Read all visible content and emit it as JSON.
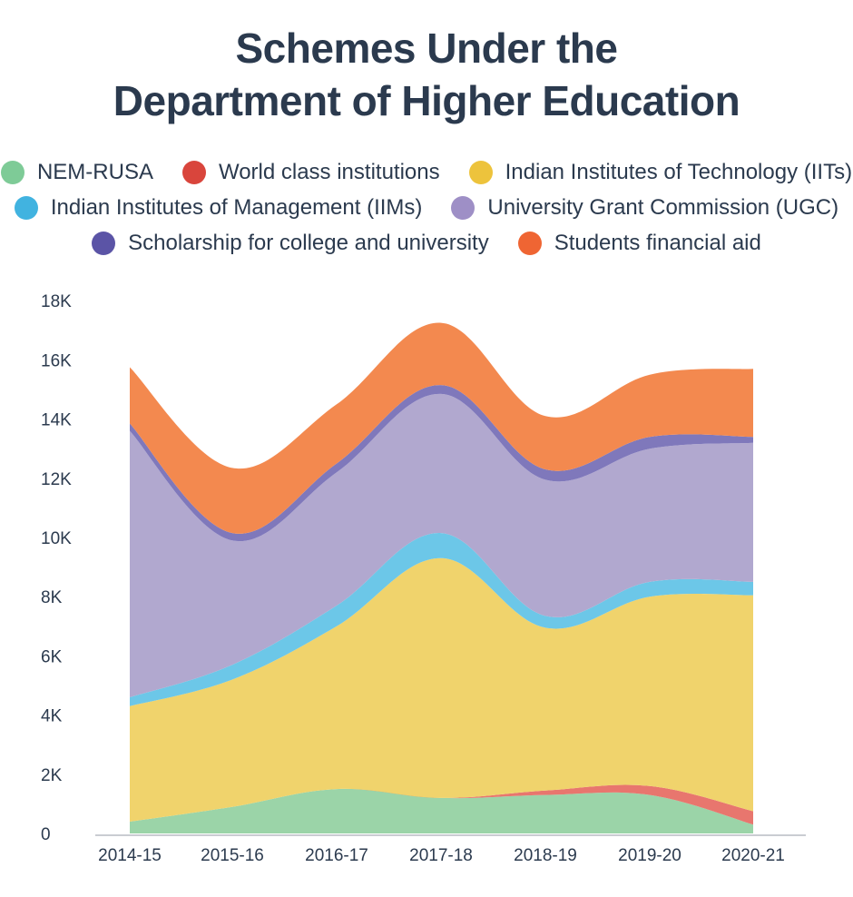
{
  "title_line1": "Schemes Under the",
  "title_line2": "Department of Higher Education",
  "legend": [
    [
      {
        "label": "NEM-RUSA",
        "color": "#7ecb97"
      },
      {
        "label": "World class institutions",
        "color": "#d9453c"
      },
      {
        "label": "Indian Institutes of Technology (IITs)",
        "color": "#edc33c"
      }
    ],
    [
      {
        "label": "Indian Institutes of Management (IIMs)",
        "color": "#41b3e0"
      },
      {
        "label": "University Grant Commission (UGC)",
        "color": "#9e8fc6"
      }
    ],
    [
      {
        "label": "Scholarship for college and university",
        "color": "#5b54a6"
      },
      {
        "label": "Students financial aid",
        "color": "#ef6533"
      }
    ]
  ],
  "chart_data": {
    "type": "area",
    "stacked": true,
    "categories": [
      "2014-15",
      "2015-16",
      "2016-17",
      "2017-18",
      "2018-19",
      "2019-20",
      "2020-21"
    ],
    "y_ticks": [
      "0",
      "2K",
      "4K",
      "6K",
      "8K",
      "10K",
      "12K",
      "14K",
      "16K",
      "18K"
    ],
    "ylim": [
      0,
      18000
    ],
    "series": [
      {
        "name": "NEM-RUSA",
        "color": "#9bd4a8",
        "values": [
          400,
          900,
          1500,
          1200,
          1300,
          1300,
          300
        ]
      },
      {
        "name": "World class institutions",
        "color": "#e8766e",
        "values": [
          0,
          0,
          0,
          0,
          150,
          300,
          450
        ]
      },
      {
        "name": "Indian Institutes of Technology (IITs)",
        "color": "#f0d36c",
        "values": [
          3900,
          4300,
          5500,
          8100,
          5500,
          6400,
          7300
        ]
      },
      {
        "name": "Indian Institutes of Management (IIMs)",
        "color": "#6cc7e8",
        "values": [
          300,
          500,
          700,
          850,
          400,
          500,
          450
        ]
      },
      {
        "name": "University Grant Commission (UGC)",
        "color": "#b1a8cf",
        "values": [
          9000,
          4200,
          4500,
          4700,
          4600,
          4500,
          4700
        ]
      },
      {
        "name": "Scholarship for college and university",
        "color": "#7f78bb",
        "values": [
          250,
          250,
          300,
          300,
          350,
          400,
          200
        ]
      },
      {
        "name": "Students financial aid",
        "color": "#f3894f",
        "values": [
          1900,
          2200,
          2000,
          2100,
          1800,
          2100,
          2300
        ]
      }
    ]
  }
}
